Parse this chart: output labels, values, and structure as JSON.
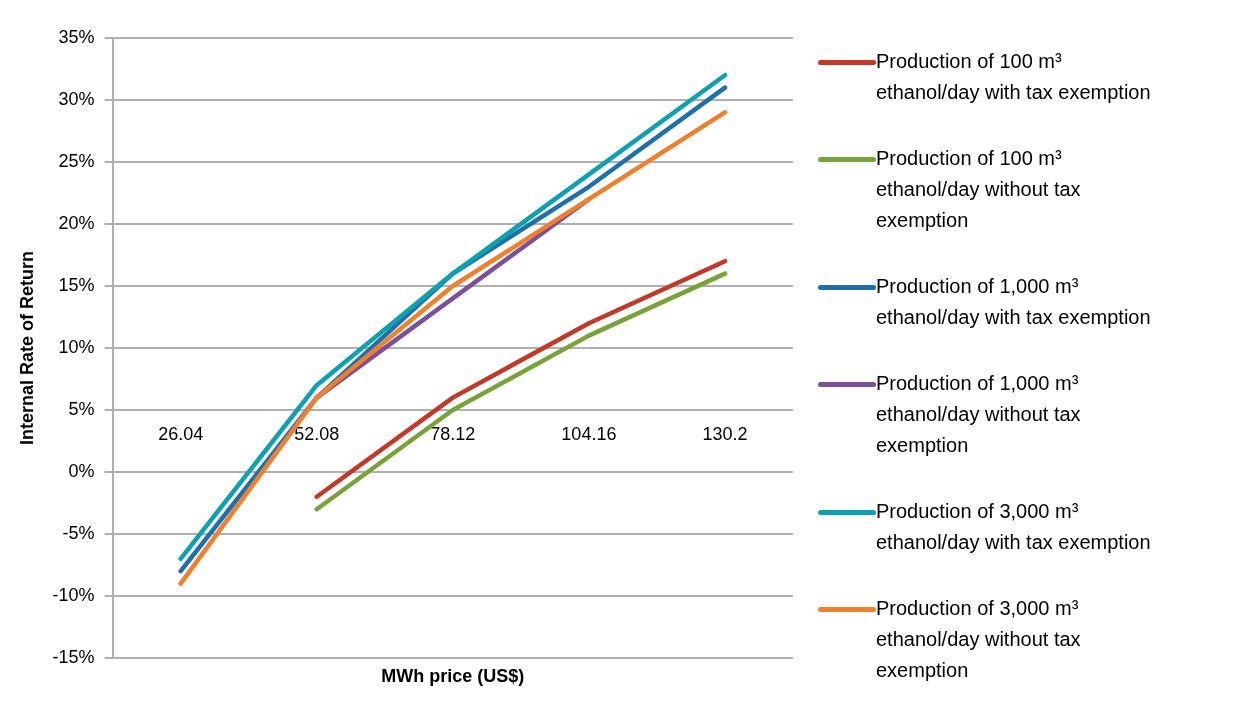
{
  "chart_data": {
    "type": "line",
    "xlabel": "MWh price (US$)",
    "ylabel": "Internal Rate of Return",
    "categories": [
      "26.04",
      "52.08",
      "78.12",
      "104.16",
      "130.2"
    ],
    "series": [
      {
        "name": "Production of 100 m³ ethanol/day with tax exemption",
        "color": "#c0392b",
        "values": [
          null,
          -2,
          6,
          12,
          17
        ]
      },
      {
        "name": "Production of 100 m³ ethanol/day without tax exemption",
        "color": "#77a33a",
        "values": [
          null,
          -3,
          5,
          11,
          16
        ]
      },
      {
        "name": "Production of 1,000 m³ ethanol/day with tax exemption",
        "color": "#1f6fa8",
        "values": [
          -8,
          6,
          16,
          23,
          31
        ]
      },
      {
        "name": "Production of 1,000 m³ ethanol/day without tax exemption",
        "color": "#7b4f9a",
        "values": [
          null,
          6,
          14,
          22,
          null
        ]
      },
      {
        "name": "Production of 3,000 m³ ethanol/day with tax exemption",
        "color": "#0e9fb0",
        "values": [
          -7,
          7,
          16,
          24,
          32
        ]
      },
      {
        "name": "Production of 3,000 m³ ethanol/day without tax exemption",
        "color": "#f07f2e",
        "values": [
          -9,
          6,
          15,
          22,
          29
        ]
      }
    ],
    "ylim": [
      -15,
      35
    ],
    "yticks": [
      {
        "value": -15,
        "label": "-15%"
      },
      {
        "value": -10,
        "label": "-10%"
      },
      {
        "value": -5,
        "label": "-5%"
      },
      {
        "value": 0,
        "label": "0%"
      },
      {
        "value": 5,
        "label": "5%"
      },
      {
        "value": 10,
        "label": "10%"
      },
      {
        "value": 15,
        "label": "15%"
      },
      {
        "value": 20,
        "label": "20%"
      },
      {
        "value": 25,
        "label": "25%"
      },
      {
        "value": 30,
        "label": "30%"
      },
      {
        "value": 35,
        "label": "35%"
      }
    ],
    "grid": "y",
    "legend": "right",
    "marker": "none",
    "line_style": "solid"
  }
}
